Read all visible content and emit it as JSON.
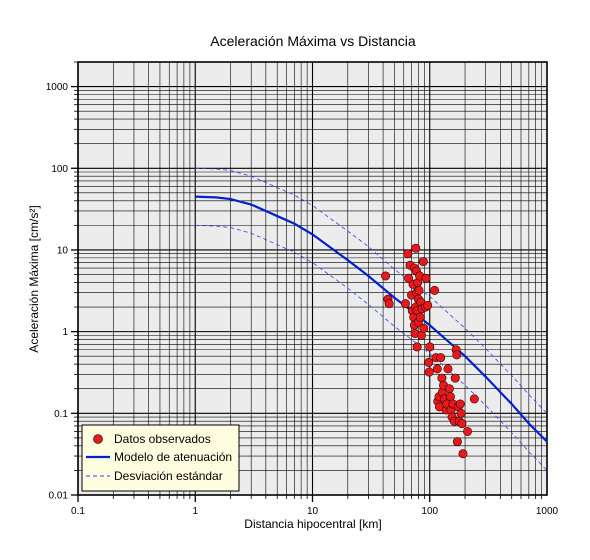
{
  "chart_data": {
    "type": "scatter",
    "title": "Aceleración Máxima vs Distancia",
    "xlabel": "Distancia hipocentral [km]",
    "ylabel": "Aceleración Máxima [cm/s²]",
    "xscale": "log",
    "yscale": "log",
    "xlim": [
      0.1,
      1000
    ],
    "ylim": [
      0.01,
      2000
    ],
    "x_ticks": [
      {
        "value": 0.1,
        "label": "0.1"
      },
      {
        "value": 1,
        "label": "1"
      },
      {
        "value": 10,
        "label": "10"
      },
      {
        "value": 100,
        "label": "100"
      },
      {
        "value": 1000,
        "label": "1000"
      }
    ],
    "y_ticks": [
      {
        "value": 0.01,
        "label": "0.01"
      },
      {
        "value": 0.1,
        "label": "0.1"
      },
      {
        "value": 1,
        "label": "1"
      },
      {
        "value": 10,
        "label": "10"
      },
      {
        "value": 100,
        "label": "100"
      },
      {
        "value": 1000,
        "label": "1000"
      }
    ],
    "grid": true,
    "legend_position": "bottom-left",
    "series": [
      {
        "name": "Datos observados",
        "kind": "scatter",
        "color": "#e41a1c",
        "points": [
          [
            42,
            4.8
          ],
          [
            44,
            2.5
          ],
          [
            45,
            2.2
          ],
          [
            62,
            2.2
          ],
          [
            65,
            9.0
          ],
          [
            66,
            4.5
          ],
          [
            68,
            6.5
          ],
          [
            70,
            2.8
          ],
          [
            71,
            1.8
          ],
          [
            72,
            3.8
          ],
          [
            73,
            1.5
          ],
          [
            74,
            6.0
          ],
          [
            74,
            1.2
          ],
          [
            75,
            0.95
          ],
          [
            76,
            10.5
          ],
          [
            76,
            2.0
          ],
          [
            77,
            5.5
          ],
          [
            77,
            3.0
          ],
          [
            78,
            0.65
          ],
          [
            78,
            1.8
          ],
          [
            79,
            4.0
          ],
          [
            80,
            2.5
          ],
          [
            80,
            1.3
          ],
          [
            81,
            3.2
          ],
          [
            82,
            4.8
          ],
          [
            83,
            1.5
          ],
          [
            84,
            2.3
          ],
          [
            85,
            0.9
          ],
          [
            86,
            1.9
          ],
          [
            88,
            7.2
          ],
          [
            89,
            1.1
          ],
          [
            92,
            2.0
          ],
          [
            93,
            4.5
          ],
          [
            96,
            2.1
          ],
          [
            98,
            0.42
          ],
          [
            99,
            0.32
          ],
          [
            100,
            0.65
          ],
          [
            110,
            3.2
          ],
          [
            113,
            0.48
          ],
          [
            116,
            0.35
          ],
          [
            117,
            0.14
          ],
          [
            120,
            0.16
          ],
          [
            121,
            0.12
          ],
          [
            124,
            0.48
          ],
          [
            127,
            0.27
          ],
          [
            128,
            0.18
          ],
          [
            131,
            0.22
          ],
          [
            134,
            0.15
          ],
          [
            138,
            0.11
          ],
          [
            140,
            0.13
          ],
          [
            143,
            0.35
          ],
          [
            147,
            0.2
          ],
          [
            150,
            0.16
          ],
          [
            152,
            0.11
          ],
          [
            155,
            0.09
          ],
          [
            158,
            0.13
          ],
          [
            162,
            0.08
          ],
          [
            165,
            0.27
          ],
          [
            168,
            0.6
          ],
          [
            170,
            0.52
          ],
          [
            172,
            0.045
          ],
          [
            175,
            0.12
          ],
          [
            178,
            0.08
          ],
          [
            182,
            0.13
          ],
          [
            185,
            0.1
          ],
          [
            188,
            0.075
          ],
          [
            192,
            0.032
          ],
          [
            210,
            0.06
          ],
          [
            240,
            0.15
          ]
        ]
      },
      {
        "name": "Modelo de atenuación",
        "kind": "line",
        "color": "#0022cc",
        "points": [
          [
            1,
            45
          ],
          [
            1.5,
            44
          ],
          [
            2,
            42
          ],
          [
            3,
            36
          ],
          [
            4,
            30
          ],
          [
            5,
            26
          ],
          [
            7,
            21
          ],
          [
            10,
            15.5
          ],
          [
            20,
            7.5
          ],
          [
            30,
            4.8
          ],
          [
            50,
            2.6
          ],
          [
            70,
            1.8
          ],
          [
            100,
            1.2
          ],
          [
            200,
            0.5
          ],
          [
            300,
            0.28
          ],
          [
            500,
            0.13
          ],
          [
            700,
            0.075
          ],
          [
            1000,
            0.045
          ]
        ]
      },
      {
        "name": "Desviación estándar",
        "kind": "dashed-line",
        "color": "#3344ee",
        "lines": [
          [
            [
              1,
              100
            ],
            [
              1.5,
              98
            ],
            [
              2,
              94
            ],
            [
              3,
              80
            ],
            [
              4,
              67
            ],
            [
              5,
              58
            ],
            [
              7,
              47
            ],
            [
              10,
              35
            ],
            [
              20,
              17
            ],
            [
              30,
              11
            ],
            [
              50,
              5.8
            ],
            [
              70,
              4.0
            ],
            [
              100,
              2.7
            ],
            [
              200,
              1.1
            ],
            [
              300,
              0.62
            ],
            [
              500,
              0.29
            ],
            [
              700,
              0.17
            ],
            [
              1000,
              0.1
            ]
          ],
          [
            [
              1,
              20
            ],
            [
              1.5,
              19.6
            ],
            [
              2,
              18.8
            ],
            [
              3,
              16
            ],
            [
              4,
              13.4
            ],
            [
              5,
              11.6
            ],
            [
              7,
              9.4
            ],
            [
              10,
              7.0
            ],
            [
              20,
              3.4
            ],
            [
              30,
              2.15
            ],
            [
              50,
              1.16
            ],
            [
              70,
              0.8
            ],
            [
              100,
              0.54
            ],
            [
              200,
              0.22
            ],
            [
              300,
              0.125
            ],
            [
              500,
              0.058
            ],
            [
              700,
              0.034
            ],
            [
              1000,
              0.02
            ]
          ]
        ]
      }
    ]
  }
}
